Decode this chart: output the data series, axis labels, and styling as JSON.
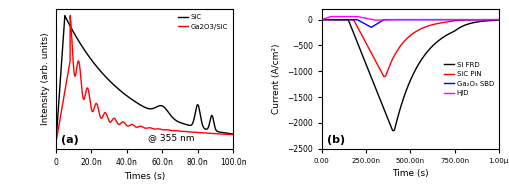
{
  "panel_a": {
    "xlabel": "Times (s)",
    "ylabel": "Intensity (arb. units)",
    "annotation": "@ 355 nm",
    "label_a": "(a)",
    "xlim": [
      0,
      1e-07
    ],
    "xticks": [
      0,
      2e-08,
      4e-08,
      6e-08,
      8e-08,
      1e-07
    ],
    "xtick_labels": [
      "0",
      "20.0n",
      "40.0n",
      "60.0n",
      "80.0n",
      "100.0n"
    ],
    "legend": [
      "SiC",
      "Ga2O3/SiC"
    ],
    "colors": [
      "black",
      "red"
    ]
  },
  "panel_b": {
    "xlabel": "Time (s)",
    "ylabel": "Current (A/cm²)",
    "label_b": "(b)",
    "xlim": [
      0,
      1e-06
    ],
    "ylim": [
      -2500,
      200
    ],
    "xticks": [
      0,
      2.5e-07,
      5e-07,
      7.5e-07,
      1e-06
    ],
    "xtick_labels": [
      "0.00",
      "250.00n",
      "500.00n",
      "750.00n",
      "1.00μ"
    ],
    "yticks": [
      0,
      -500,
      -1000,
      -1500,
      -2000,
      -2500
    ],
    "legend": [
      "Si FRD",
      "SiC PiN",
      "Ga₂O₃ SBD",
      "HJD"
    ],
    "colors": [
      "black",
      "red",
      "blue",
      "magenta"
    ]
  }
}
